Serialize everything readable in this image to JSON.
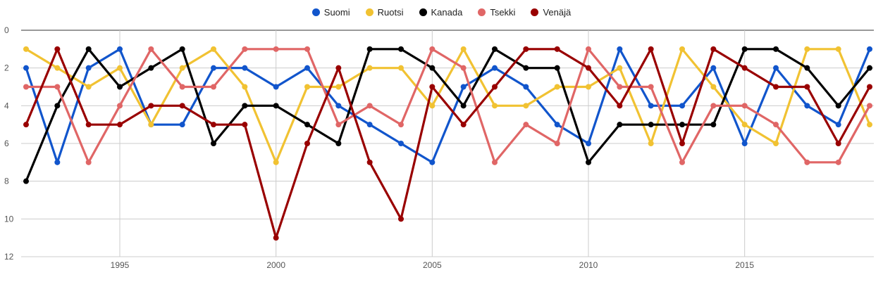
{
  "chart_data": {
    "type": "line",
    "x": [
      1992,
      1993,
      1994,
      1995,
      1996,
      1997,
      1998,
      1999,
      2000,
      2001,
      2002,
      2003,
      2004,
      2005,
      2006,
      2007,
      2008,
      2009,
      2010,
      2011,
      2012,
      2013,
      2014,
      2015,
      2016,
      2017,
      2018,
      2019
    ],
    "series": [
      {
        "name": "Suomi",
        "color": "#1155cc",
        "values": [
          2,
          7,
          2,
          1,
          5,
          5,
          2,
          2,
          3,
          2,
          4,
          5,
          6,
          7,
          3,
          2,
          3,
          5,
          6,
          1,
          4,
          4,
          2,
          6,
          2,
          4,
          5,
          1
        ]
      },
      {
        "name": "Ruotsi",
        "color": "#f1c232",
        "values": [
          1,
          2,
          3,
          2,
          5,
          2,
          1,
          3,
          7,
          3,
          3,
          2,
          2,
          4,
          1,
          4,
          4,
          3,
          3,
          2,
          6,
          1,
          3,
          5,
          6,
          1,
          1,
          5
        ]
      },
      {
        "name": "Kanada",
        "color": "#000000",
        "values": [
          8,
          4,
          1,
          3,
          2,
          1,
          6,
          4,
          4,
          5,
          6,
          1,
          1,
          2,
          4,
          1,
          2,
          2,
          7,
          5,
          5,
          5,
          5,
          1,
          1,
          2,
          4,
          2
        ]
      },
      {
        "name": "Tsekki",
        "color": "#e06666",
        "values": [
          3,
          3,
          7,
          4,
          1,
          3,
          3,
          1,
          1,
          1,
          5,
          4,
          5,
          1,
          2,
          7,
          5,
          6,
          1,
          3,
          3,
          7,
          4,
          4,
          5,
          7,
          7,
          4
        ]
      },
      {
        "name": "Venäjä",
        "color": "#990000",
        "values": [
          5,
          1,
          5,
          5,
          4,
          4,
          5,
          5,
          11,
          6,
          2,
          7,
          10,
          3,
          5,
          3,
          1,
          1,
          2,
          4,
          1,
          6,
          1,
          2,
          3,
          3,
          6,
          3
        ]
      }
    ],
    "x_ticks": [
      "1995",
      "2000",
      "2005",
      "2010",
      "2015"
    ],
    "y_ticks": [
      "0",
      "2",
      "4",
      "6",
      "8",
      "10",
      "12"
    ],
    "xlim": [
      1992,
      2019
    ],
    "ylim": [
      0,
      12
    ],
    "y_reversed": true,
    "grid": true,
    "legend_position": "top",
    "title": "",
    "xlabel": "",
    "ylabel": ""
  }
}
